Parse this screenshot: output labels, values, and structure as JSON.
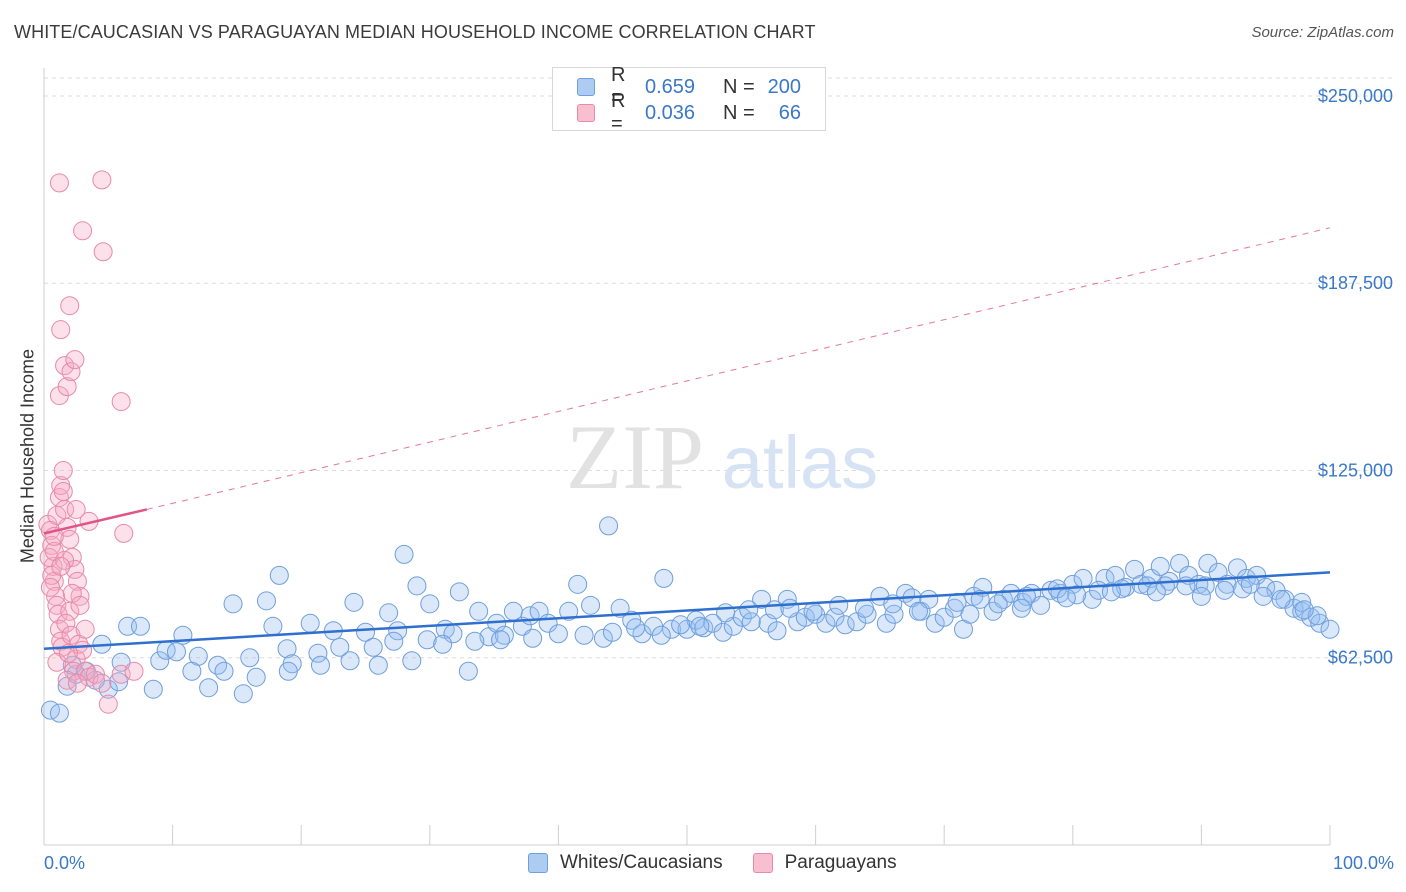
{
  "header": {
    "title": "WHITE/CAUCASIAN VS PARAGUAYAN MEDIAN HOUSEHOLD INCOME CORRELATION CHART",
    "source": "Source: ZipAtlas.com"
  },
  "watermark": {
    "zip": "ZIP",
    "atlas": "atlas"
  },
  "legend": {
    "rows": [
      {
        "r_label": "R =",
        "r_value": "0.659",
        "n_label": "N =",
        "n_value": "200",
        "color": "#aecbf2",
        "border": "#6f9fdc"
      },
      {
        "r_label": "R =",
        "r_value": "0.036",
        "n_label": "N =",
        "n_value": "66",
        "color": "#f7bfd0",
        "border": "#e88aa8"
      }
    ]
  },
  "bottom_legend": {
    "items": [
      {
        "label": "Whites/Caucasians",
        "color": "#aecbf2",
        "border": "#6f9fdc"
      },
      {
        "label": "Paraguayans",
        "color": "#f7bfd0",
        "border": "#e88aa8"
      }
    ]
  },
  "colors": {
    "blue_fill": "rgba(150,190,240,0.35)",
    "blue_stroke": "#6f9fdc",
    "blue_line": "#2e6fcf",
    "pink_fill": "rgba(245,170,195,0.35)",
    "pink_stroke": "#e88aa8",
    "pink_line": "#e05588",
    "grid": "#dcdcdc",
    "axis_text": "#3a78c9"
  },
  "chart_data": {
    "type": "scatter",
    "title": "WHITE/CAUCASIAN VS PARAGUAYAN MEDIAN HOUSEHOLD INCOME CORRELATION CHART",
    "xlabel": "",
    "ylabel": "Median Household Income",
    "xlim": [
      0,
      100
    ],
    "ylim": [
      0,
      256000
    ],
    "x_tick_labels": [
      "0.0%",
      "100.0%"
    ],
    "y_ticks": [
      62500,
      125000,
      187500,
      250000
    ],
    "y_tick_labels": [
      "$62,500",
      "$125,000",
      "$187,500",
      "$250,000"
    ],
    "grid": true,
    "legend_position": "top-center",
    "series": [
      {
        "name": "Whites/Caucasians",
        "R": 0.659,
        "N": 200,
        "trend": {
          "x": [
            0,
            100
          ],
          "y": [
            65500,
            91000
          ],
          "style": "solid"
        },
        "points": [
          [
            0.5,
            45000
          ],
          [
            1.2,
            44000
          ],
          [
            1.8,
            53000
          ],
          [
            2.5,
            57000
          ],
          [
            3.3,
            58000
          ],
          [
            4.5,
            67000
          ],
          [
            5,
            52000
          ],
          [
            5.8,
            54500
          ],
          [
            6.5,
            73000
          ],
          [
            7.5,
            73000
          ],
          [
            9,
            61500
          ],
          [
            9.5,
            65000
          ],
          [
            10.3,
            64500
          ],
          [
            10.8,
            70000
          ],
          [
            12,
            63000
          ],
          [
            12.8,
            52500
          ],
          [
            13.5,
            60000
          ],
          [
            14.7,
            80500
          ],
          [
            16,
            62500
          ],
          [
            15.5,
            50500
          ],
          [
            17.3,
            81500
          ],
          [
            17.8,
            73000
          ],
          [
            18.3,
            90000
          ],
          [
            18.9,
            65500
          ],
          [
            19.3,
            60500
          ],
          [
            20.7,
            74000
          ],
          [
            21.3,
            64000
          ],
          [
            22.5,
            71500
          ],
          [
            23.8,
            61500
          ],
          [
            24.1,
            81000
          ],
          [
            25,
            71000
          ],
          [
            26,
            60000
          ],
          [
            26.8,
            77500
          ],
          [
            27.5,
            71500
          ],
          [
            28,
            97000
          ],
          [
            28.6,
            61500
          ],
          [
            29,
            86500
          ],
          [
            30,
            80500
          ],
          [
            31.2,
            72000
          ],
          [
            31.8,
            70500
          ],
          [
            32.3,
            84500
          ],
          [
            33,
            58000
          ],
          [
            33.8,
            78000
          ],
          [
            34.6,
            69500
          ],
          [
            35.2,
            74000
          ],
          [
            35.8,
            70000
          ],
          [
            36.5,
            78000
          ],
          [
            37.2,
            73000
          ],
          [
            37.8,
            76500
          ],
          [
            38.5,
            78000
          ],
          [
            39.2,
            74000
          ],
          [
            40.8,
            78000
          ],
          [
            41.5,
            87000
          ],
          [
            42.5,
            80000
          ],
          [
            43.5,
            69000
          ],
          [
            43.9,
            106500
          ],
          [
            44.8,
            79000
          ],
          [
            45.7,
            75000
          ],
          [
            46.5,
            70500
          ],
          [
            47.4,
            73000
          ],
          [
            48.2,
            89000
          ],
          [
            48.8,
            72000
          ],
          [
            50,
            72000
          ],
          [
            50.7,
            75000
          ],
          [
            51.3,
            72500
          ],
          [
            52,
            74000
          ],
          [
            52.8,
            71000
          ],
          [
            53.6,
            73000
          ],
          [
            54.3,
            76000
          ],
          [
            55,
            74500
          ],
          [
            55.8,
            82000
          ],
          [
            56.3,
            74000
          ],
          [
            57,
            71500
          ],
          [
            57.8,
            82000
          ],
          [
            58.6,
            74500
          ],
          [
            59.2,
            76000
          ],
          [
            60,
            77000
          ],
          [
            60.8,
            74000
          ],
          [
            61.5,
            76000
          ],
          [
            62.3,
            73500
          ],
          [
            63.2,
            74500
          ],
          [
            64,
            77000
          ],
          [
            65,
            83000
          ],
          [
            65.5,
            74000
          ],
          [
            66.1,
            77000
          ],
          [
            67,
            84000
          ],
          [
            67.5,
            82500
          ],
          [
            68.2,
            78000
          ],
          [
            69.3,
            74000
          ],
          [
            70,
            76000
          ],
          [
            70.8,
            79000
          ],
          [
            71.5,
            72000
          ],
          [
            72.3,
            83000
          ],
          [
            73,
            86000
          ],
          [
            73.8,
            78000
          ],
          [
            74.6,
            82000
          ],
          [
            75.2,
            84000
          ],
          [
            76.1,
            81000
          ],
          [
            76.8,
            84000
          ],
          [
            77.5,
            80000
          ],
          [
            78.3,
            85000
          ],
          [
            79,
            84000
          ],
          [
            80,
            87000
          ],
          [
            80.8,
            89000
          ],
          [
            81.5,
            82000
          ],
          [
            82.5,
            89000
          ],
          [
            83.3,
            90000
          ],
          [
            84.1,
            86000
          ],
          [
            84.8,
            92000
          ],
          [
            85.3,
            87000
          ],
          [
            86.1,
            89000
          ],
          [
            86.8,
            93000
          ],
          [
            87.5,
            88000
          ],
          [
            88.3,
            94000
          ],
          [
            89,
            90000
          ],
          [
            89.8,
            87000
          ],
          [
            90.5,
            94000
          ],
          [
            91.3,
            91000
          ],
          [
            92,
            87000
          ],
          [
            92.8,
            92500
          ],
          [
            93.5,
            89000
          ],
          [
            94.3,
            90000
          ],
          [
            95,
            86000
          ],
          [
            95.8,
            85000
          ],
          [
            96.5,
            82000
          ],
          [
            97.2,
            79000
          ],
          [
            97.8,
            78000
          ],
          [
            98.5,
            76000
          ],
          [
            99.2,
            74000
          ],
          [
            100,
            72000
          ],
          [
            2.2,
            60000
          ],
          [
            4,
            55000
          ],
          [
            6,
            61000
          ],
          [
            8.5,
            52000
          ],
          [
            11.5,
            58000
          ],
          [
            14,
            58000
          ],
          [
            16.5,
            56000
          ],
          [
            19,
            58000
          ],
          [
            21.5,
            60000
          ],
          [
            23,
            66000
          ],
          [
            25.6,
            66000
          ],
          [
            27.2,
            68000
          ],
          [
            29.8,
            68500
          ],
          [
            31,
            67000
          ],
          [
            33.5,
            68000
          ],
          [
            35.5,
            68500
          ],
          [
            38,
            69000
          ],
          [
            40,
            70500
          ],
          [
            42,
            70000
          ],
          [
            44.2,
            71000
          ],
          [
            46,
            72500
          ],
          [
            48,
            70000
          ],
          [
            49.5,
            73500
          ],
          [
            51,
            73000
          ],
          [
            53,
            77500
          ],
          [
            54.8,
            78500
          ],
          [
            56.8,
            78500
          ],
          [
            58,
            79000
          ],
          [
            59.8,
            78000
          ],
          [
            61.8,
            80000
          ],
          [
            63.8,
            79000
          ],
          [
            66,
            80500
          ],
          [
            68.8,
            82000
          ],
          [
            71,
            81000
          ],
          [
            72.8,
            82000
          ],
          [
            74.2,
            80500
          ],
          [
            76.4,
            83000
          ],
          [
            78.8,
            85500
          ],
          [
            80.3,
            83500
          ],
          [
            82,
            85000
          ],
          [
            83.8,
            85500
          ],
          [
            85.8,
            86500
          ],
          [
            87.2,
            86500
          ],
          [
            88.8,
            86500
          ],
          [
            90.3,
            86500
          ],
          [
            91.8,
            85000
          ],
          [
            93.2,
            85500
          ],
          [
            94.8,
            83000
          ],
          [
            96.2,
            82000
          ],
          [
            97.8,
            81000
          ],
          [
            99,
            76500
          ],
          [
            98,
            78500
          ],
          [
            93.8,
            87000
          ],
          [
            90,
            83000
          ],
          [
            86.5,
            84500
          ],
          [
            83,
            84500
          ],
          [
            79.5,
            82500
          ],
          [
            76,
            79000
          ],
          [
            72,
            77000
          ],
          [
            68,
            78000
          ]
        ]
      },
      {
        "name": "Paraguayans",
        "R": 0.036,
        "N": 66,
        "trend": {
          "x": [
            0,
            8
          ],
          "y": [
            104000,
            112000
          ],
          "style": "solid",
          "dashed_extension_to": [
            100,
            206000
          ]
        },
        "points": [
          [
            0.3,
            107000
          ],
          [
            0.5,
            105000
          ],
          [
            0.6,
            100000
          ],
          [
            0.7,
            93000
          ],
          [
            0.8,
            88000
          ],
          [
            0.9,
            83000
          ],
          [
            1,
            80000
          ],
          [
            1.1,
            77000
          ],
          [
            1.2,
            72000
          ],
          [
            1.3,
            68000
          ],
          [
            0.4,
            96000
          ],
          [
            0.6,
            90000
          ],
          [
            0.8,
            98000
          ],
          [
            1,
            110000
          ],
          [
            1.2,
            116000
          ],
          [
            1.3,
            120000
          ],
          [
            1.5,
            125000
          ],
          [
            1.6,
            112000
          ],
          [
            1.8,
            106000
          ],
          [
            2,
            102000
          ],
          [
            2.2,
            96000
          ],
          [
            2.4,
            92000
          ],
          [
            2.6,
            88000
          ],
          [
            2.8,
            83000
          ],
          [
            2,
            78000
          ],
          [
            1.7,
            74000
          ],
          [
            1.4,
            66000
          ],
          [
            2.1,
            70000
          ],
          [
            2.5,
            62000
          ],
          [
            2.3,
            58000
          ],
          [
            1.8,
            55000
          ],
          [
            2.7,
            67000
          ],
          [
            3,
            65000
          ],
          [
            3.2,
            58000
          ],
          [
            3.5,
            56000
          ],
          [
            4,
            57000
          ],
          [
            4.5,
            54000
          ],
          [
            5,
            47000
          ],
          [
            6,
            57000
          ],
          [
            7,
            58000
          ],
          [
            1.2,
            150000
          ],
          [
            1.6,
            160000
          ],
          [
            1.8,
            153000
          ],
          [
            2.1,
            158000
          ],
          [
            2.4,
            162000
          ],
          [
            1.3,
            172000
          ],
          [
            2,
            180000
          ],
          [
            1.2,
            221000
          ],
          [
            3,
            205000
          ],
          [
            4.5,
            222000
          ],
          [
            4.6,
            198000
          ],
          [
            6,
            148000
          ],
          [
            6.2,
            104000
          ],
          [
            3.5,
            108000
          ],
          [
            2.5,
            112000
          ],
          [
            1.5,
            118000
          ],
          [
            0.8,
            103000
          ],
          [
            1.6,
            95000
          ],
          [
            2.2,
            84000
          ],
          [
            2.8,
            80000
          ],
          [
            3.2,
            72000
          ],
          [
            1,
            61000
          ],
          [
            1.9,
            64000
          ],
          [
            2.6,
            54000
          ],
          [
            0.5,
            86000
          ],
          [
            1.3,
            93000
          ]
        ]
      }
    ]
  }
}
